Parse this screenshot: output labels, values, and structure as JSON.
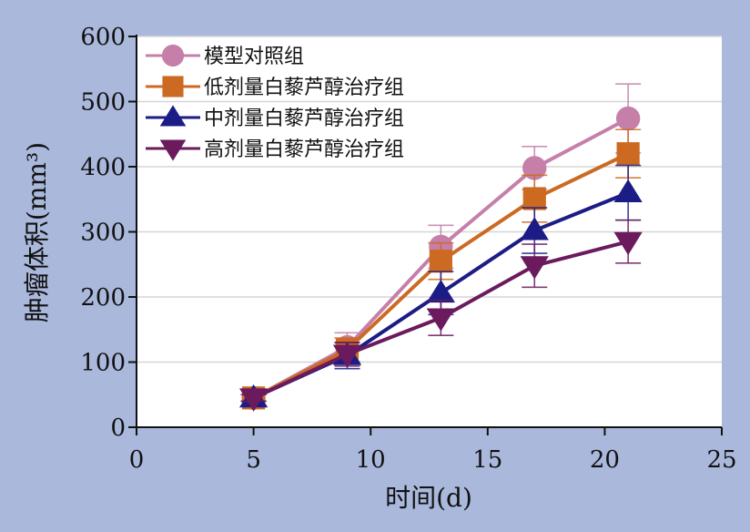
{
  "chart_data": {
    "type": "line",
    "title": "",
    "xlabel": "时间(d)",
    "ylabel": "肿瘤体积(mm³)",
    "xlim": [
      0,
      25
    ],
    "ylim": [
      0,
      600
    ],
    "xticks": [
      0,
      5,
      10,
      15,
      20,
      25
    ],
    "yticks": [
      0,
      100,
      200,
      300,
      400,
      500,
      600
    ],
    "grid": "horizontal",
    "legend_position": "top-left",
    "x": [
      5,
      9,
      13,
      17,
      21
    ],
    "series": [
      {
        "name": "模型对照组",
        "marker": "circle",
        "color": "#c57fa9",
        "values": [
          45,
          123,
          277,
          398,
          474
        ],
        "errors": [
          5,
          22,
          33,
          33,
          53
        ]
      },
      {
        "name": "低剂量白藜芦醇治疗组",
        "marker": "square",
        "color": "#cc6a22",
        "values": [
          45,
          119,
          255,
          351,
          420
        ],
        "errors": [
          5,
          18,
          28,
          36,
          37
        ]
      },
      {
        "name": "中剂量白藜芦醇治疗组",
        "marker": "triangle-up",
        "color": "#1c1c86",
        "values": [
          45,
          110,
          206,
          302,
          360
        ],
        "errors": [
          5,
          20,
          33,
          35,
          42
        ]
      },
      {
        "name": "高剂量白藜芦醇治疗组",
        "marker": "triangle-down",
        "color": "#6b1a5e",
        "values": [
          45,
          112,
          168,
          248,
          285
        ],
        "errors": [
          5,
          18,
          27,
          33,
          33
        ]
      }
    ]
  }
}
